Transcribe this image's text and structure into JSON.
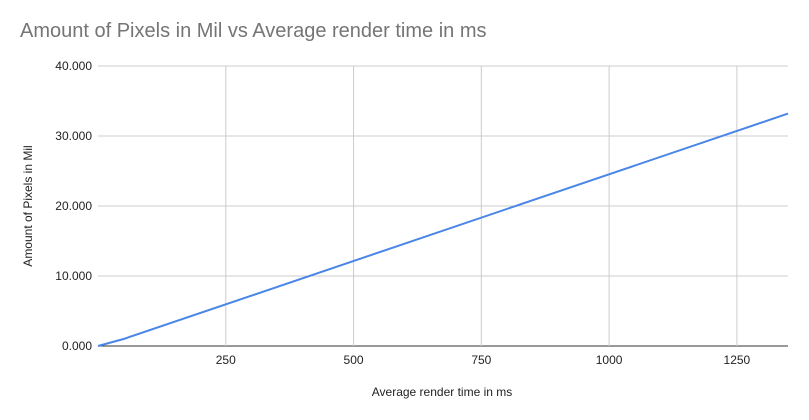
{
  "chart_data": {
    "type": "line",
    "title": "Amount of Pixels in Mil vs Average render time in ms",
    "xlabel": "Average render time in ms",
    "ylabel": "Amount of Pixels in Mil",
    "xlim": [
      0,
      1350
    ],
    "ylim": [
      0,
      40
    ],
    "x_ticks": [
      250,
      500,
      750,
      1000,
      1250
    ],
    "x_tick_labels": [
      "250",
      "500",
      "750",
      "1000",
      "1250"
    ],
    "y_ticks": [
      0,
      10,
      20,
      30,
      40
    ],
    "y_tick_labels": [
      "0.000",
      "10.000",
      "20.000",
      "30.000",
      "40.000"
    ],
    "grid": true,
    "legend": "none",
    "series": [
      {
        "color": "#4a86e8",
        "x": [
          0,
          50,
          1350
        ],
        "y": [
          0,
          1,
          33.2
        ]
      }
    ]
  }
}
